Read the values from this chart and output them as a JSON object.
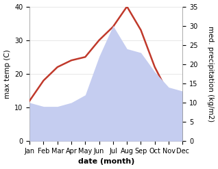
{
  "months": [
    "Jan",
    "Feb",
    "Mar",
    "Apr",
    "May",
    "Jun",
    "Jul",
    "Aug",
    "Sep",
    "Oct",
    "Nov",
    "Dec"
  ],
  "max_temp": [
    12,
    18,
    22,
    24,
    25,
    30,
    34,
    40,
    33,
    22,
    14,
    12
  ],
  "precipitation": [
    10,
    9,
    9,
    10,
    12,
    22,
    30,
    24,
    23,
    18,
    14,
    13
  ],
  "temp_color": "#c0392b",
  "precip_color": "#c5cdf0",
  "background_color": "#ffffff",
  "xlabel": "date (month)",
  "ylabel_left": "max temp (C)",
  "ylabel_right": "med. precipitation (kg/m2)",
  "ylim_left": [
    0,
    40
  ],
  "ylim_right": [
    0,
    35
  ],
  "yticks_left": [
    0,
    10,
    20,
    30,
    40
  ],
  "yticks_right": [
    0,
    5,
    10,
    15,
    20,
    25,
    30,
    35
  ],
  "temp_linewidth": 1.8,
  "xlabel_fontsize": 8,
  "ylabel_fontsize": 7.5,
  "tick_fontsize": 7
}
